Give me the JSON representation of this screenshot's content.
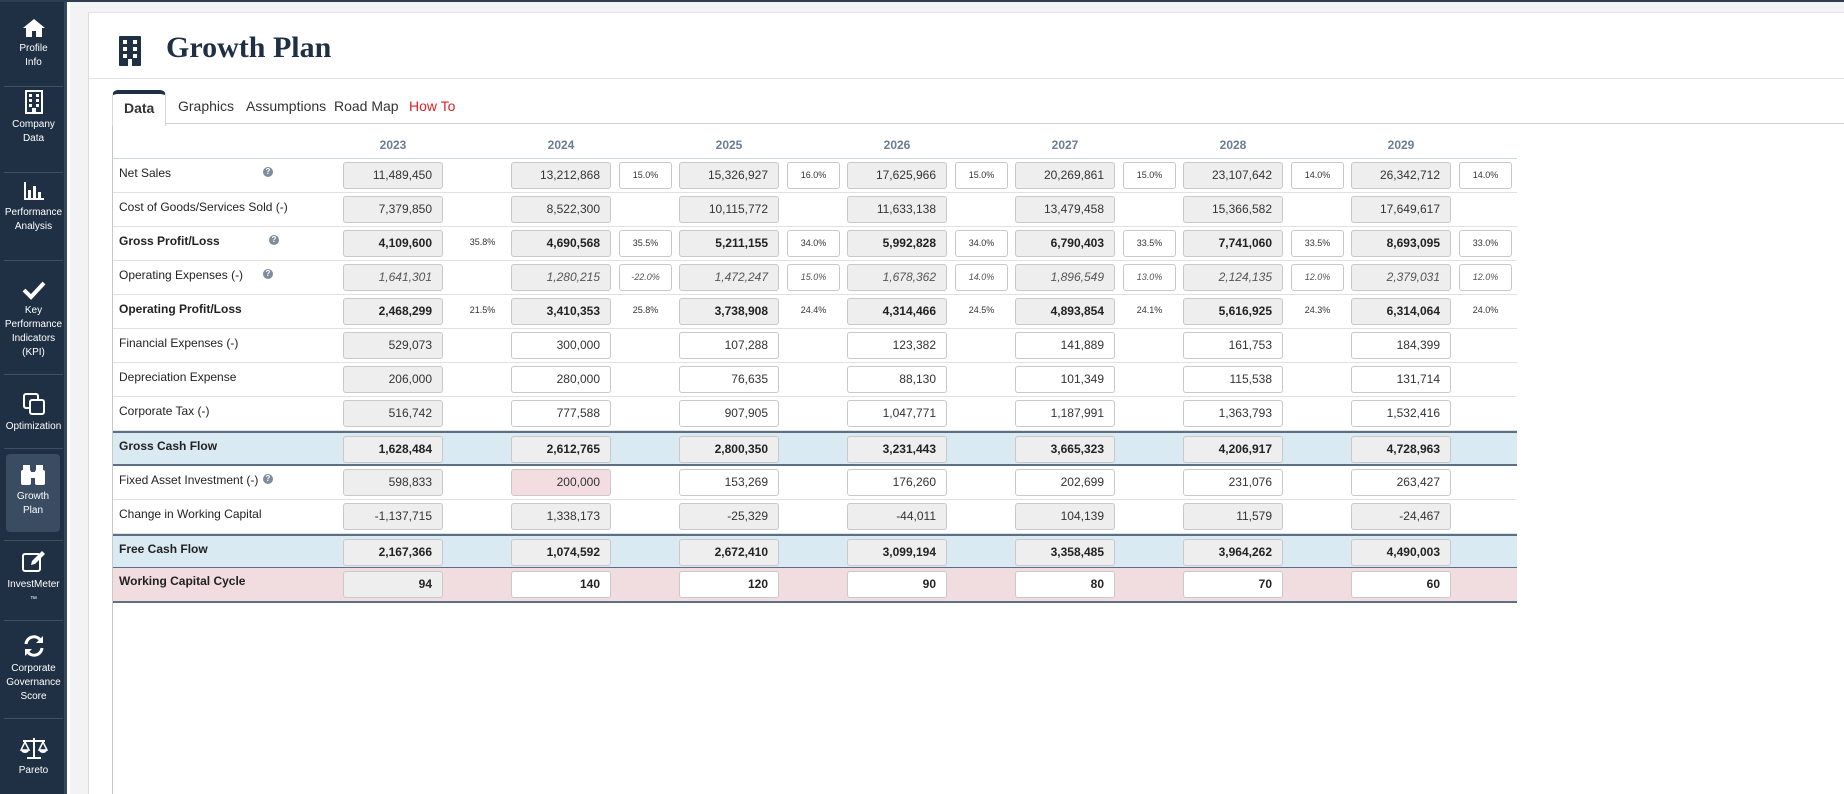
{
  "sidebar": {
    "items": [
      {
        "label_line1": "Profile",
        "label_line2": "Info",
        "icon": "home-icon"
      },
      {
        "label_line1": "Company",
        "label_line2": "Data",
        "icon": "building-icon"
      },
      {
        "label_line1": "Performance",
        "label_line2": "Analysis",
        "icon": "bar-chart-icon"
      },
      {
        "label_line1": "Key Performance",
        "label_line2": "Indicators (KPI)",
        "icon": "check-icon"
      },
      {
        "label_line1": "Optimization",
        "label_line2": "",
        "icon": "copy-icon"
      },
      {
        "label_line1": "Growth",
        "label_line2": "Plan",
        "icon": "binoculars-icon"
      },
      {
        "label_line1": "InvestMeter",
        "label_line2": "™",
        "icon": "edit-icon"
      },
      {
        "label_line1": "Corporate Governance",
        "label_line2": "Score",
        "icon": "refresh-icon"
      },
      {
        "label_line1": "Pareto",
        "label_line2": "",
        "icon": "scale-icon"
      }
    ]
  },
  "page": {
    "title": "Growth Plan",
    "title_icon": "building-icon"
  },
  "tabs": [
    {
      "label": "Data"
    },
    {
      "label": "Graphics"
    },
    {
      "label": "Assumptions"
    },
    {
      "label": "Road Map"
    },
    {
      "label": "How To"
    }
  ],
  "colors": {
    "sidebar": "#1f3044",
    "blue_row": "#d9eaf3",
    "pink_row": "#f1dcdf",
    "howto": "#e02020"
  },
  "years": [
    "2023",
    "2024",
    "2025",
    "2026",
    "2027",
    "2028",
    "2029"
  ],
  "rows": [
    {
      "label": "Net Sales",
      "help": true,
      "style": "normal",
      "values": [
        "11,489,450",
        "13,212,868",
        "15,326,927",
        "17,625,966",
        "20,269,861",
        "23,107,642",
        "26,342,712"
      ],
      "pcts": [
        "",
        "15.0%",
        "16.0%",
        "15.0%",
        "15.0%",
        "14.0%",
        "14.0%"
      ]
    },
    {
      "label": "Cost of Goods/Services Sold (-)",
      "help": false,
      "style": "normal",
      "values": [
        "7,379,850",
        "8,522,300",
        "10,115,772",
        "11,633,138",
        "13,479,458",
        "15,366,582",
        "17,649,617"
      ],
      "pcts": [
        "",
        "",
        "",
        "",
        "",
        "",
        ""
      ]
    },
    {
      "label": "Gross Profit/Loss",
      "help": true,
      "style": "boldrow",
      "values": [
        "4,109,600",
        "4,690,568",
        "5,211,155",
        "5,992,828",
        "6,790,403",
        "7,741,060",
        "8,693,095"
      ],
      "pcts": [
        "35.8%",
        "35.5%",
        "34.0%",
        "34.0%",
        "33.5%",
        "33.5%",
        "33.0%"
      ]
    },
    {
      "label": "Operating Expenses (-)",
      "help": true,
      "style": "italic",
      "values": [
        "1,641,301",
        "1,280,215",
        "1,472,247",
        "1,678,362",
        "1,896,549",
        "2,124,135",
        "2,379,031"
      ],
      "pcts": [
        "",
        "-22.0%",
        "15.0%",
        "14.0%",
        "13.0%",
        "12.0%",
        "12.0%"
      ]
    },
    {
      "label": "Operating Profit/Loss",
      "help": false,
      "style": "boldrow",
      "values": [
        "2,468,299",
        "3,410,353",
        "3,738,908",
        "4,314,466",
        "4,893,854",
        "5,616,925",
        "6,314,064"
      ],
      "pcts": [
        "21.5%",
        "25.8%",
        "24.4%",
        "24.5%",
        "24.1%",
        "24.3%",
        "24.0%"
      ]
    },
    {
      "label": "Financial Expenses (-)",
      "help": false,
      "style": "input",
      "values": [
        "529,073",
        "300,000",
        "107,288",
        "123,382",
        "141,889",
        "161,753",
        "184,399"
      ],
      "pcts": [
        "",
        "",
        "",
        "",
        "",
        "",
        ""
      ]
    },
    {
      "label": "Depreciation Expense",
      "help": false,
      "style": "input",
      "values": [
        "206,000",
        "280,000",
        "76,635",
        "88,130",
        "101,349",
        "115,538",
        "131,714"
      ],
      "pcts": [
        "",
        "",
        "",
        "",
        "",
        "",
        ""
      ]
    },
    {
      "label": "Corporate Tax (-)",
      "help": false,
      "style": "input",
      "values": [
        "516,742",
        "777,588",
        "907,905",
        "1,047,771",
        "1,187,991",
        "1,363,793",
        "1,532,416"
      ],
      "pcts": [
        "",
        "",
        "",
        "",
        "",
        "",
        ""
      ]
    },
    {
      "label": "Gross Cash Flow",
      "help": false,
      "style": "blue",
      "values": [
        "1,628,484",
        "2,612,765",
        "2,800,350",
        "3,231,443",
        "3,665,323",
        "4,206,917",
        "4,728,963"
      ],
      "pcts": [
        "",
        "",
        "",
        "",
        "",
        "",
        ""
      ]
    },
    {
      "label": "Fixed Asset Investment (-)",
      "help": true,
      "style": "fixed",
      "values": [
        "598,833",
        "200,000",
        "153,269",
        "176,260",
        "202,699",
        "231,076",
        "263,427"
      ],
      "pcts": [
        "",
        "",
        "",
        "",
        "",
        "",
        ""
      ]
    },
    {
      "label": "Change in Working Capital",
      "help": false,
      "style": "normal",
      "values": [
        "-1,137,715",
        "1,338,173",
        "-25,329",
        "-44,011",
        "104,139",
        "11,579",
        "-24,467"
      ],
      "pcts": [
        "",
        "",
        "",
        "",
        "",
        "",
        ""
      ]
    },
    {
      "label": "Free Cash Flow",
      "help": false,
      "style": "blue",
      "values": [
        "2,167,366",
        "1,074,592",
        "2,672,410",
        "3,099,194",
        "3,358,485",
        "3,964,262",
        "4,490,003"
      ],
      "pcts": [
        "",
        "",
        "",
        "",
        "",
        "",
        ""
      ]
    },
    {
      "label": "Working Capital Cycle",
      "help": false,
      "style": "pink",
      "values": [
        "94",
        "140",
        "120",
        "90",
        "80",
        "70",
        "60"
      ],
      "pcts": [
        "",
        "",
        "",
        "",
        "",
        "",
        ""
      ]
    }
  ]
}
